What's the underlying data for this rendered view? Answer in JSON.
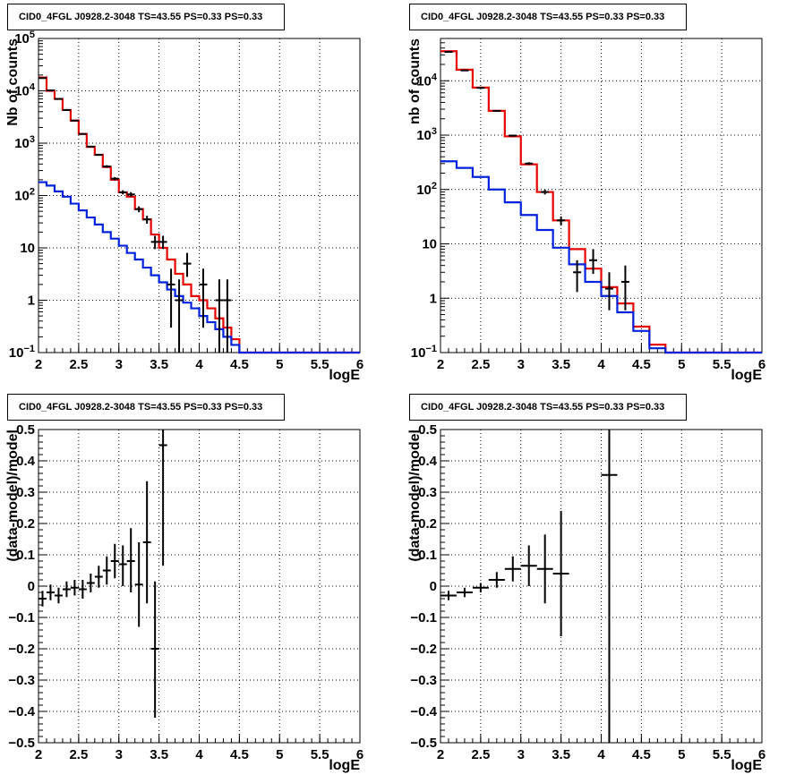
{
  "panel_title": "CID0_4FGL J0928.2-3048 TS=43.55 PS=0.33 PS=0.33",
  "colors": {
    "data": "#000000",
    "total_model": "#e60000",
    "source_model": "#0022dd",
    "grid": "#000000"
  },
  "chart_data": [
    {
      "type": "line",
      "title": "CID0_4FGL J0928.2-3048 TS=43.55 PS=0.33 PS=0.33",
      "xlabel": "logE",
      "ylabel": "Nb of counts",
      "xlim": [
        2,
        6
      ],
      "ylim": [
        0.1,
        100000
      ],
      "yscale": "log",
      "grid": true,
      "x_ticks": [
        "2",
        "2.5",
        "3",
        "3.5",
        "4",
        "4.5",
        "5",
        "5.5",
        "6"
      ],
      "y_ticks": [
        "10^-1",
        "1",
        "10",
        "10^2",
        "10^3",
        "10^4",
        "10^5"
      ],
      "bin_edges": [
        2,
        2.1,
        2.2,
        2.3,
        2.4,
        2.5,
        2.6,
        2.7,
        2.8,
        2.9,
        3,
        3.1,
        3.2,
        3.3,
        3.4,
        3.5,
        3.6,
        3.7,
        3.8,
        3.9,
        4,
        4.1,
        4.2,
        4.3,
        4.4,
        4.5,
        4.6,
        4.7,
        4.8,
        4.9,
        5,
        5.1,
        5.2,
        5.3,
        5.4,
        5.5,
        5.6,
        5.7,
        5.8,
        5.9,
        6
      ],
      "series": [
        {
          "role": "total_model",
          "style": "step",
          "values": [
            18000,
            10000,
            7000,
            4300,
            2700,
            1500,
            850,
            600,
            350,
            200,
            115,
            95,
            55,
            35,
            18,
            10,
            6,
            3.2,
            2.0,
            1.2,
            1.0,
            0.7,
            0.45,
            0.3,
            0.18,
            0.1,
            0.1,
            0.1,
            0.1,
            0.1,
            0.1,
            0.1,
            0.1,
            0.1,
            0.1,
            0.1,
            0.1,
            0.1,
            0.1,
            0.1
          ]
        },
        {
          "role": "source_model",
          "style": "step",
          "values": [
            180,
            155,
            120,
            95,
            70,
            52,
            38,
            28,
            20,
            15,
            11,
            8,
            6,
            4.2,
            3.0,
            2.2,
            1.6,
            1.2,
            0.9,
            0.7,
            0.5,
            0.38,
            0.28,
            0.2,
            0.14,
            0.1,
            0.1,
            0.1,
            0.1,
            0.1,
            0.1,
            0.1,
            0.1,
            0.1,
            0.1,
            0.1,
            0.1,
            0.1,
            0.1,
            0.1
          ]
        },
        {
          "role": "data",
          "style": "errorbar",
          "points": [
            {
              "x": 2.05,
              "y": 17500,
              "lo": 17200,
              "hi": 17800
            },
            {
              "x": 2.15,
              "y": 10200,
              "lo": 10000,
              "hi": 10400
            },
            {
              "x": 2.25,
              "y": 7000,
              "lo": 6850,
              "hi": 7150
            },
            {
              "x": 2.35,
              "y": 4300,
              "lo": 4200,
              "hi": 4400
            },
            {
              "x": 2.45,
              "y": 2700,
              "lo": 2620,
              "hi": 2780
            },
            {
              "x": 2.55,
              "y": 1500,
              "lo": 1450,
              "hi": 1550
            },
            {
              "x": 2.65,
              "y": 860,
              "lo": 830,
              "hi": 890
            },
            {
              "x": 2.75,
              "y": 600,
              "lo": 575,
              "hi": 625
            },
            {
              "x": 2.85,
              "y": 360,
              "lo": 340,
              "hi": 380
            },
            {
              "x": 2.95,
              "y": 210,
              "lo": 195,
              "hi": 225
            },
            {
              "x": 3.05,
              "y": 115,
              "lo": 105,
              "hi": 126
            },
            {
              "x": 3.15,
              "y": 105,
              "lo": 95,
              "hi": 116
            },
            {
              "x": 3.25,
              "y": 55,
              "lo": 48,
              "hi": 62
            },
            {
              "x": 3.35,
              "y": 35,
              "lo": 29,
              "hi": 41
            },
            {
              "x": 3.45,
              "y": 13,
              "lo": 9.5,
              "hi": 17
            },
            {
              "x": 3.55,
              "y": 13,
              "lo": 9.5,
              "hi": 17
            },
            {
              "x": 3.65,
              "y": 2,
              "lo": 0.3,
              "hi": 4
            },
            {
              "x": 3.75,
              "y": 1,
              "lo": 0.1,
              "hi": 2.5
            },
            {
              "x": 3.85,
              "y": 5,
              "lo": 2.8,
              "hi": 8
            },
            {
              "x": 4.05,
              "y": 2,
              "lo": 0.3,
              "hi": 4
            },
            {
              "x": 4.25,
              "y": 1,
              "lo": 0.1,
              "hi": 2.5
            },
            {
              "x": 4.35,
              "y": 1,
              "lo": 0.1,
              "hi": 2.5
            }
          ]
        }
      ]
    },
    {
      "type": "line",
      "title": "CID0_4FGL J0928.2-3048 TS=43.55 PS=0.33 PS=0.33",
      "xlabel": "logE",
      "ylabel": "nb of counts",
      "xlim": [
        2,
        6
      ],
      "ylim": [
        0.1,
        60000
      ],
      "yscale": "log",
      "grid": true,
      "x_ticks": [
        "2",
        "2.5",
        "3",
        "3.5",
        "4",
        "4.5",
        "5",
        "5.5",
        "6"
      ],
      "y_ticks": [
        "10^-1",
        "1",
        "10",
        "10^2",
        "10^3",
        "10^4"
      ],
      "bin_edges": [
        2,
        2.2,
        2.4,
        2.6,
        2.8,
        3,
        3.2,
        3.4,
        3.6,
        3.8,
        4,
        4.2,
        4.4,
        4.6,
        4.8,
        5,
        5.2,
        5.4,
        5.6,
        5.8,
        6
      ],
      "series": [
        {
          "role": "total_model",
          "style": "step",
          "values": [
            35000,
            16000,
            7500,
            2800,
            950,
            290,
            90,
            27,
            8,
            3.5,
            1.6,
            0.8,
            0.3,
            0.14,
            0.1,
            0.1,
            0.1,
            0.1,
            0.1,
            0.1
          ]
        },
        {
          "role": "source_model",
          "style": "step",
          "values": [
            330,
            250,
            170,
            100,
            58,
            34,
            18,
            8.5,
            4.2,
            2.0,
            1.1,
            0.55,
            0.25,
            0.12,
            0.1,
            0.1,
            0.1,
            0.1,
            0.1,
            0.1
          ]
        },
        {
          "role": "data",
          "style": "errorbar",
          "points": [
            {
              "x": 2.1,
              "y": 34000,
              "lo": 33700,
              "hi": 34300
            },
            {
              "x": 2.3,
              "y": 15500,
              "lo": 15300,
              "hi": 15700
            },
            {
              "x": 2.5,
              "y": 7400,
              "lo": 7250,
              "hi": 7550
            },
            {
              "x": 2.7,
              "y": 2800,
              "lo": 2720,
              "hi": 2880
            },
            {
              "x": 2.9,
              "y": 980,
              "lo": 940,
              "hi": 1020
            },
            {
              "x": 3.1,
              "y": 300,
              "lo": 283,
              "hi": 318
            },
            {
              "x": 3.3,
              "y": 90,
              "lo": 81,
              "hi": 100
            },
            {
              "x": 3.5,
              "y": 27,
              "lo": 22,
              "hi": 32
            },
            {
              "x": 3.7,
              "y": 3,
              "lo": 1.3,
              "hi": 5
            },
            {
              "x": 3.9,
              "y": 5,
              "lo": 2.8,
              "hi": 8
            },
            {
              "x": 4.1,
              "y": 1.5,
              "lo": 0.6,
              "hi": 3
            },
            {
              "x": 4.3,
              "y": 2,
              "lo": 0.6,
              "hi": 4
            }
          ]
        }
      ]
    },
    {
      "type": "scatter",
      "title": "CID0_4FGL J0928.2-3048 TS=43.55 PS=0.33 PS=0.33",
      "xlabel": "logE",
      "ylabel": "(data-model)/model",
      "xlim": [
        2,
        6
      ],
      "ylim": [
        -0.5,
        0.5
      ],
      "grid": true,
      "x_ticks": [
        "2",
        "2.5",
        "3",
        "3.5",
        "4",
        "4.5",
        "5",
        "5.5",
        "6"
      ],
      "y_ticks": [
        "−0.5",
        "−0.4",
        "−0.3",
        "−0.2",
        "−0.1",
        "0",
        "0.1",
        "0.2",
        "0.3",
        "0.4",
        "0.5"
      ],
      "series": [
        {
          "role": "data",
          "style": "errorbar",
          "xerr": 0.05,
          "points": [
            {
              "x": 2.05,
              "y": -0.04,
              "lo": -0.065,
              "hi": -0.015
            },
            {
              "x": 2.15,
              "y": -0.02,
              "lo": -0.045,
              "hi": 0.005
            },
            {
              "x": 2.25,
              "y": -0.03,
              "lo": -0.055,
              "hi": -0.005
            },
            {
              "x": 2.35,
              "y": -0.01,
              "lo": -0.035,
              "hi": 0.015
            },
            {
              "x": 2.45,
              "y": -0.005,
              "lo": -0.03,
              "hi": 0.02
            },
            {
              "x": 2.55,
              "y": -0.01,
              "lo": -0.04,
              "hi": 0.02
            },
            {
              "x": 2.65,
              "y": 0.01,
              "lo": -0.02,
              "hi": 0.04
            },
            {
              "x": 2.75,
              "y": 0.03,
              "lo": -0.005,
              "hi": 0.065
            },
            {
              "x": 2.85,
              "y": 0.05,
              "lo": 0.005,
              "hi": 0.095
            },
            {
              "x": 2.95,
              "y": 0.08,
              "lo": 0.025,
              "hi": 0.135
            },
            {
              "x": 3.05,
              "y": 0.07,
              "lo": 0.0,
              "hi": 0.13
            },
            {
              "x": 3.15,
              "y": 0.08,
              "lo": -0.02,
              "hi": 0.185
            },
            {
              "x": 3.25,
              "y": 0.005,
              "lo": -0.13,
              "hi": 0.14
            },
            {
              "x": 3.35,
              "y": 0.14,
              "lo": -0.055,
              "hi": 0.335
            },
            {
              "x": 3.45,
              "y": -0.2,
              "lo": -0.42,
              "hi": 0.015
            },
            {
              "x": 3.55,
              "y": 0.45,
              "lo": 0.065,
              "hi": 0.5
            }
          ]
        }
      ]
    },
    {
      "type": "scatter",
      "title": "CID0_4FGL J0928.2-3048 TS=43.55 PS=0.33 PS=0.33",
      "xlabel": "logE",
      "ylabel": "(data-model)/model",
      "xlim": [
        2,
        6
      ],
      "ylim": [
        -0.5,
        0.5
      ],
      "grid": true,
      "x_ticks": [
        "2",
        "2.5",
        "3",
        "3.5",
        "4",
        "4.5",
        "5",
        "5.5",
        "6"
      ],
      "y_ticks": [
        "−0.5",
        "−0.4",
        "−0.3",
        "−0.2",
        "−0.1",
        "0",
        "0.1",
        "0.2",
        "0.3",
        "0.4",
        "0.5"
      ],
      "series": [
        {
          "role": "data",
          "style": "errorbar",
          "xerr": 0.1,
          "points": [
            {
              "x": 2.1,
              "y": -0.03,
              "lo": -0.045,
              "hi": -0.015
            },
            {
              "x": 2.3,
              "y": -0.02,
              "lo": -0.035,
              "hi": -0.005
            },
            {
              "x": 2.5,
              "y": -0.005,
              "lo": -0.02,
              "hi": 0.01
            },
            {
              "x": 2.7,
              "y": 0.02,
              "lo": -0.005,
              "hi": 0.045
            },
            {
              "x": 2.9,
              "y": 0.055,
              "lo": 0.015,
              "hi": 0.095
            },
            {
              "x": 3.1,
              "y": 0.065,
              "lo": 0.0,
              "hi": 0.13
            },
            {
              "x": 3.3,
              "y": 0.055,
              "lo": -0.055,
              "hi": 0.165
            },
            {
              "x": 3.5,
              "y": 0.04,
              "lo": -0.16,
              "hi": 0.24
            },
            {
              "x": 4.1,
              "y": 0.355,
              "lo": -0.5,
              "hi": 0.5
            }
          ]
        }
      ]
    }
  ]
}
